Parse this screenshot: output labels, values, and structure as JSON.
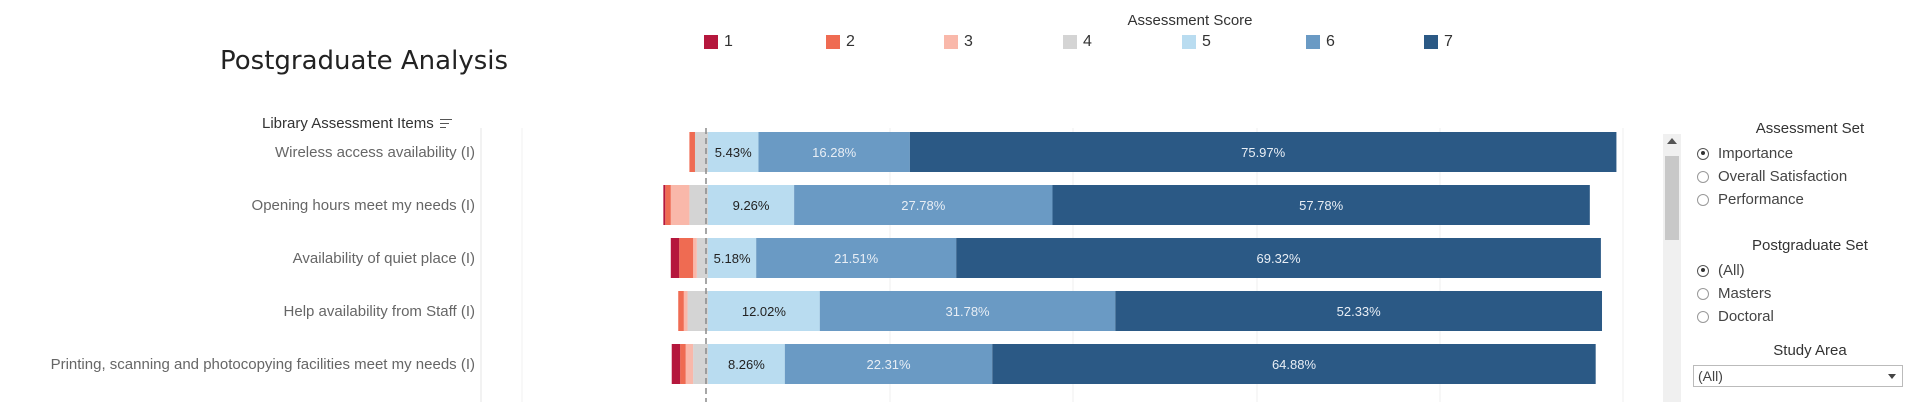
{
  "page": {
    "title": "Postgraduate Analysis"
  },
  "legend": {
    "title": "Assessment Score",
    "items": [
      {
        "label": "1",
        "color": "#b5173d"
      },
      {
        "label": "2",
        "color": "#ef6b52"
      },
      {
        "label": "3",
        "color": "#f9b8aa"
      },
      {
        "label": "4",
        "color": "#d4d4d4"
      },
      {
        "label": "5",
        "color": "#b9dcf0"
      },
      {
        "label": "6",
        "color": "#6a9ac4"
      },
      {
        "label": "7",
        "color": "#2b5985"
      }
    ]
  },
  "field_header": {
    "label": "Library Assessment Items",
    "icon": "sort-icon"
  },
  "chart_data": {
    "type": "bar",
    "orientation": "horizontal-stacked-diverging",
    "categories": [
      "Wireless access availability (I)",
      "Opening hours meet my needs (I)",
      "Availability of quiet place (I)",
      "Help availability from Staff (I)",
      "Printing, scanning and photocopying facilities meet my needs (I)"
    ],
    "series": [
      {
        "name": "1",
        "values": [
          0.0,
          0.2,
          0.9,
          0.0,
          0.9
        ]
      },
      {
        "name": "2",
        "values": [
          0.6,
          0.6,
          1.5,
          0.6,
          0.6
        ]
      },
      {
        "name": "3",
        "values": [
          0.0,
          2.0,
          0.4,
          0.4,
          0.8
        ]
      },
      {
        "name": "4",
        "values": [
          1.4,
          2.0,
          1.2,
          2.2,
          1.6
        ]
      },
      {
        "name": "5",
        "values": [
          5.43,
          9.26,
          5.18,
          12.02,
          8.26
        ]
      },
      {
        "name": "6",
        "values": [
          16.28,
          27.78,
          21.51,
          31.78,
          22.31
        ]
      },
      {
        "name": "7",
        "values": [
          75.97,
          57.78,
          69.32,
          52.33,
          64.88
        ]
      }
    ],
    "data_labels": {
      "5": [
        "5.43%",
        "9.26%",
        "5.18%",
        "12.02%",
        "8.26%"
      ],
      "6": [
        "16.28%",
        "27.78%",
        "21.51%",
        "31.78%",
        "22.31%"
      ],
      "7": [
        "75.97%",
        "57.78%",
        "69.32%",
        "52.33%",
        "64.88%"
      ]
    },
    "baseline": "between score 4 and 5 (dashed reference line)",
    "grid": "vertical"
  },
  "controls": {
    "assessment_set": {
      "title": "Assessment Set",
      "options": [
        "Importance",
        "Overall Satisfaction",
        "Performance"
      ],
      "selected": "Importance"
    },
    "postgraduate_set": {
      "title": "Postgraduate Set",
      "options": [
        "(All)",
        "Masters",
        "Doctoral"
      ],
      "selected": "(All)"
    },
    "study_area": {
      "title": "Study Area",
      "value": "(All)"
    }
  }
}
